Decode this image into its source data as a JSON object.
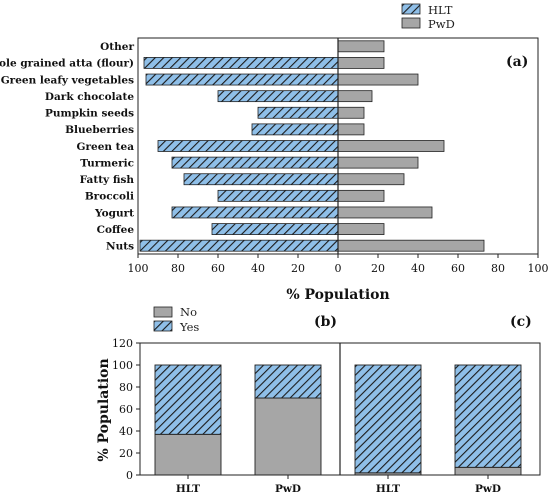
{
  "colors": {
    "hatch_fill": "#8fbfe8",
    "hatch_line": "#1a1a1a",
    "gray_fill": "#a6a6a6",
    "edge": "#222222"
  },
  "chart_data": [
    {
      "id": "a",
      "type": "bar",
      "orientation": "horizontal-back-to-back",
      "panel_label": "(a)",
      "xlabel": "% Population",
      "xticks": [
        "100",
        "80",
        "60",
        "40",
        "20",
        "0",
        "20",
        "40",
        "60",
        "80",
        "100"
      ],
      "xlim_left": [
        100,
        0
      ],
      "xlim_right": [
        0,
        100
      ],
      "categories": [
        "Other",
        "Whole grained atta (flour)",
        "Green leafy vegetables",
        "Dark chocolate",
        "Pumpkin seeds",
        "Blueberries",
        "Green tea",
        "Turmeric",
        "Fatty fish",
        "Broccoli",
        "Yogurt",
        "Coffee",
        "Nuts"
      ],
      "legend": [
        "HLT",
        "PwD"
      ],
      "legend_position": "top-right",
      "series": [
        {
          "name": "HLT",
          "side": "left",
          "pattern": "hatched",
          "values": [
            0,
            97,
            96,
            60,
            40,
            43,
            90,
            83,
            77,
            60,
            83,
            63,
            99
          ]
        },
        {
          "name": "PwD",
          "side": "right",
          "pattern": "solid-gray",
          "values": [
            23,
            23,
            40,
            17,
            13,
            13,
            53,
            40,
            33,
            23,
            47,
            23,
            73
          ]
        }
      ]
    },
    {
      "id": "b",
      "type": "bar",
      "stacked": true,
      "panel_label": "(b)",
      "ylabel": "% Population",
      "ylim": [
        0,
        120
      ],
      "yticks": [
        "0",
        "20",
        "40",
        "60",
        "80",
        "100",
        "120"
      ],
      "categories": [
        "HLT",
        "PwD"
      ],
      "legend": [
        "No",
        "Yes"
      ],
      "legend_position": "top-left",
      "series": [
        {
          "name": "No",
          "pattern": "solid-gray",
          "values": [
            37,
            70
          ]
        },
        {
          "name": "Yes",
          "pattern": "hatched",
          "values": [
            63,
            30
          ]
        }
      ]
    },
    {
      "id": "c",
      "type": "bar",
      "stacked": true,
      "panel_label": "(c)",
      "ylim": [
        0,
        120
      ],
      "categories": [
        "HLT",
        "PwD"
      ],
      "series": [
        {
          "name": "No",
          "pattern": "solid-gray",
          "values": [
            2,
            7
          ]
        },
        {
          "name": "Yes",
          "pattern": "hatched",
          "values": [
            98,
            93
          ]
        }
      ]
    }
  ]
}
